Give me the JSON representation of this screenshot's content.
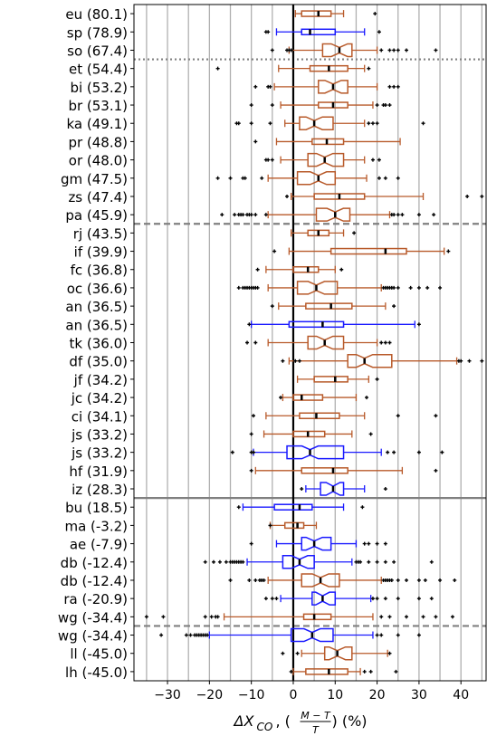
{
  "chart_data": {
    "type": "boxplot",
    "orientation": "horizontal",
    "xlabel_parts": {
      "delta": "ΔX",
      "sub": "CO",
      "frac_num": "M − T",
      "frac_den": "T",
      "unit": "(%)"
    },
    "xlim": [
      -38,
      46
    ],
    "xticks": [
      -30,
      -20,
      -10,
      0,
      10,
      20,
      30,
      40
    ],
    "vertical_gridlines": true,
    "zero_line": 0,
    "colors": {
      "default": "#b85a2a",
      "highlight": "#1a1aff",
      "grid": "#b0b0b0",
      "separator": "#808080",
      "outlier": "#000000"
    },
    "separators": [
      {
        "after_row": 2,
        "style": "dotted"
      },
      {
        "after_row": 11,
        "style": "dashed"
      },
      {
        "after_row": 26,
        "style": "solid"
      },
      {
        "after_row": 33,
        "style": "dashed"
      }
    ],
    "rows": [
      {
        "label": "eu (80.1)",
        "color": "default",
        "q1": 2,
        "med": 6,
        "q3": 9,
        "wlo": 0.5,
        "whi": 12,
        "notch": false,
        "out": [
          19.5
        ]
      },
      {
        "label": "sp (78.9)",
        "color": "highlight",
        "q1": 2,
        "med": 4,
        "q3": 10,
        "wlo": -4,
        "whi": 17,
        "notch": false,
        "out": [
          -6.5,
          -6,
          20.5
        ]
      },
      {
        "label": "so (67.4)",
        "color": "default",
        "q1": 7,
        "med": 11,
        "q3": 14,
        "wlo": -1,
        "whi": 20,
        "notch": true,
        "out": [
          -5,
          -1.5,
          -1,
          -0.5,
          21,
          23,
          24,
          25,
          27,
          34
        ]
      },
      {
        "label": "et (54.4)",
        "color": "default",
        "q1": 4,
        "med": 8.5,
        "q3": 13,
        "wlo": -3.5,
        "whi": 17,
        "notch": false,
        "out": [
          -18,
          18
        ]
      },
      {
        "label": "bi (53.2)",
        "color": "default",
        "q1": 6,
        "med": 9.5,
        "q3": 13,
        "wlo": -4.5,
        "whi": 20,
        "notch": true,
        "out": [
          -9,
          -6,
          -5.5,
          23,
          24,
          25
        ]
      },
      {
        "label": "br (53.1)",
        "color": "default",
        "q1": 6,
        "med": 9.5,
        "q3": 13,
        "wlo": -3,
        "whi": 19,
        "notch": false,
        "out": [
          -10,
          -5,
          20,
          21.5,
          22,
          23
        ]
      },
      {
        "label": "ka (49.1)",
        "color": "default",
        "q1": 1.5,
        "med": 5,
        "q3": 9.5,
        "wlo": -2,
        "whi": 17,
        "notch": true,
        "out": [
          -13.5,
          -13,
          -10,
          -5.5,
          18,
          19,
          20,
          31
        ]
      },
      {
        "label": "pr (48.8)",
        "color": "default",
        "q1": 4.5,
        "med": 8,
        "q3": 12,
        "wlo": -4,
        "whi": 25.5,
        "notch": false,
        "out": [
          -9
        ]
      },
      {
        "label": "or (48.0)",
        "color": "default",
        "q1": 3.5,
        "med": 7.5,
        "q3": 12,
        "wlo": -3,
        "whi": 17,
        "notch": true,
        "out": [
          -6.5,
          -6,
          -5,
          19,
          20.5
        ]
      },
      {
        "label": "gm (47.5)",
        "color": "default",
        "q1": 1,
        "med": 6,
        "q3": 10,
        "wlo": -6,
        "whi": 17.5,
        "notch": true,
        "out": [
          -18,
          -15,
          -12,
          -11.5,
          -7.5,
          20.5,
          22,
          25
        ]
      },
      {
        "label": "zs (47.4)",
        "color": "default",
        "q1": 5,
        "med": 11,
        "q3": 17,
        "wlo": -0.5,
        "whi": 31,
        "notch": false,
        "out": [
          -1.5,
          41.5,
          45
        ]
      },
      {
        "label": "pa (45.9)",
        "color": "default",
        "q1": 5.5,
        "med": 10,
        "q3": 13.5,
        "wlo": -6,
        "whi": 23,
        "notch": true,
        "out": [
          -17,
          -14,
          -13,
          -12.5,
          -12,
          -11,
          -10.5,
          -10,
          -9,
          -6.5,
          23.5,
          24,
          25,
          26,
          30,
          33.5
        ]
      },
      {
        "label": "rj (43.5)",
        "color": "default",
        "q1": 3.5,
        "med": 6,
        "q3": 8.5,
        "wlo": -0.5,
        "whi": 12,
        "notch": false,
        "out": [
          14.5
        ]
      },
      {
        "label": "if (39.9)",
        "color": "default",
        "q1": 9,
        "med": 22,
        "q3": 27,
        "wlo": -1,
        "whi": 36,
        "notch": false,
        "out": [
          -4.5,
          37
        ]
      },
      {
        "label": "fc (36.8)",
        "color": "default",
        "q1": 0,
        "med": 3.5,
        "q3": 6,
        "wlo": -6.5,
        "whi": 10,
        "notch": false,
        "out": [
          -8.5,
          11.5
        ]
      },
      {
        "label": "oc (36.6)",
        "color": "default",
        "q1": 1,
        "med": 5.5,
        "q3": 10.5,
        "wlo": -6,
        "whi": 21,
        "notch": true,
        "out": [
          -13,
          -12,
          -11.5,
          -11,
          -10.5,
          -10,
          -9.5,
          -9,
          -8.5,
          21.5,
          22,
          22.5,
          23,
          23.5,
          24,
          25,
          28,
          30,
          32,
          35
        ]
      },
      {
        "label": "an (36.5)",
        "color": "default",
        "q1": 3,
        "med": 9,
        "q3": 14,
        "wlo": -3.5,
        "whi": 22,
        "notch": false,
        "out": [
          -5,
          24
        ]
      },
      {
        "label": "an (36.5)",
        "color": "highlight",
        "q1": -1,
        "med": 7,
        "q3": 12,
        "wlo": -10,
        "whi": 29,
        "notch": false,
        "out": [
          -10.5,
          30
        ]
      },
      {
        "label": "tk (36.0)",
        "color": "default",
        "q1": 3.5,
        "med": 7.5,
        "q3": 12,
        "wlo": -6,
        "whi": 20,
        "notch": true,
        "out": [
          -11,
          -9,
          21,
          22,
          23
        ]
      },
      {
        "label": "df (35.0)",
        "color": "default",
        "q1": 13,
        "med": 17,
        "q3": 23.5,
        "wlo": -1,
        "whi": 39,
        "notch": true,
        "out": [
          -2.5,
          0.5,
          1.5,
          39.5,
          40,
          42,
          45
        ]
      },
      {
        "label": "jf (34.2)",
        "color": "default",
        "q1": 5,
        "med": 10,
        "q3": 13,
        "wlo": 1,
        "whi": 18,
        "notch": false,
        "out": [
          20
        ]
      },
      {
        "label": "jc (34.2)",
        "color": "default",
        "q1": 0,
        "med": 2,
        "q3": 7,
        "wlo": -2.5,
        "whi": 15,
        "notch": false,
        "out": [
          -3,
          17.5
        ]
      },
      {
        "label": "ci (34.1)",
        "color": "default",
        "q1": 1.5,
        "med": 5.5,
        "q3": 11,
        "wlo": -6.5,
        "whi": 17,
        "notch": false,
        "out": [
          -9.5,
          25,
          34
        ]
      },
      {
        "label": "js (33.2)",
        "color": "default",
        "q1": 0,
        "med": 3.5,
        "q3": 7.5,
        "wlo": -7,
        "whi": 14,
        "notch": false,
        "out": [
          -10,
          18.5
        ]
      },
      {
        "label": "js (33.2)",
        "color": "highlight",
        "q1": -1.5,
        "med": 4,
        "q3": 12,
        "wlo": -9.5,
        "whi": 21,
        "notch": true,
        "out": [
          -14.5,
          -10,
          -9.5,
          22.5,
          24,
          30,
          35.5
        ]
      },
      {
        "label": "hf (31.9)",
        "color": "default",
        "q1": 2,
        "med": 9.5,
        "q3": 13,
        "wlo": -9,
        "whi": 26,
        "notch": false,
        "out": [
          -10,
          34
        ]
      },
      {
        "label": "iz (28.3)",
        "color": "highlight",
        "q1": 6.5,
        "med": 9.5,
        "q3": 12,
        "wlo": 3,
        "whi": 17,
        "notch": true,
        "out": [
          2,
          22
        ]
      },
      {
        "label": "bu (18.5)",
        "color": "highlight",
        "q1": -4.5,
        "med": 1.5,
        "q3": 4.5,
        "wlo": -12,
        "whi": 12,
        "notch": false,
        "out": [
          -13,
          16.5
        ]
      },
      {
        "label": "ma (-3.2)",
        "color": "default",
        "q1": -2,
        "med": 1,
        "q3": 2.5,
        "wlo": -5.5,
        "whi": 5.5,
        "notch": false,
        "out": [
          -5.5
        ]
      },
      {
        "label": "ae (-7.9)",
        "color": "highlight",
        "q1": 2,
        "med": 5,
        "q3": 9,
        "wlo": -4,
        "whi": 15,
        "notch": true,
        "out": [
          -10,
          17,
          18,
          20,
          22
        ]
      },
      {
        "label": "db (-12.4)",
        "color": "highlight",
        "q1": -2.5,
        "med": 1.5,
        "q3": 5,
        "wlo": -11,
        "whi": 14,
        "notch": true,
        "out": [
          -21,
          -19,
          -17.5,
          -16,
          -15,
          -14.5,
          -14,
          -13.5,
          -13,
          -12.5,
          -12,
          15,
          15.5,
          16,
          18,
          20,
          22,
          24,
          33
        ]
      },
      {
        "label": "db (-12.4)",
        "color": "default",
        "q1": 2,
        "med": 6.5,
        "q3": 11,
        "wlo": -6,
        "whi": 21,
        "notch": true,
        "out": [
          -15,
          -10.5,
          -9,
          -8,
          -7.5,
          -7,
          21.5,
          22,
          22.5,
          23,
          23.5,
          25,
          27,
          30,
          31.5,
          35,
          38.5
        ]
      },
      {
        "label": "ra (-20.9)",
        "color": "highlight",
        "q1": 4.5,
        "med": 7,
        "q3": 10,
        "wlo": -3,
        "whi": 18.5,
        "notch": true,
        "out": [
          -6.5,
          -5,
          -4,
          19,
          20,
          22,
          25,
          30,
          33
        ]
      },
      {
        "label": "wg (-34.4)",
        "color": "default",
        "q1": 2.5,
        "med": 5,
        "q3": 9,
        "wlo": -16.5,
        "whi": 19,
        "notch": false,
        "out": [
          -35,
          -31,
          -21,
          -19.5,
          -18.5,
          -18,
          21,
          23,
          27,
          31,
          34,
          38
        ]
      },
      {
        "label": "wg (-34.4)",
        "color": "highlight",
        "q1": -0.5,
        "med": 4.5,
        "q3": 9.5,
        "wlo": -20,
        "whi": 19,
        "notch": true,
        "out": [
          -31.5,
          -25.5,
          -24.5,
          -23.5,
          -23,
          -22.5,
          -22,
          -21.5,
          -21,
          -20.5,
          20,
          21,
          25,
          30
        ]
      },
      {
        "label": "ll (-45.0)",
        "color": "default",
        "q1": 7.5,
        "med": 10.5,
        "q3": 14,
        "wlo": 2,
        "whi": 22.5,
        "notch": true,
        "out": [
          -2.5,
          1,
          23
        ]
      },
      {
        "label": "lh (-45.0)",
        "color": "default",
        "q1": 3,
        "med": 8.5,
        "q3": 13,
        "wlo": 0,
        "whi": 16,
        "notch": false,
        "out": [
          -0.5,
          17,
          18.5,
          24.5
        ]
      }
    ]
  }
}
